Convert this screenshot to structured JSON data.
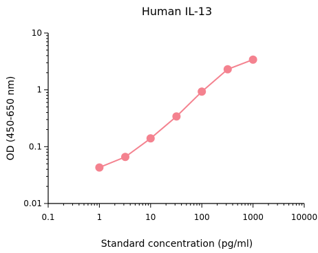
{
  "chart_data": {
    "type": "line",
    "title": "Human IL-13",
    "xlabel": "Standard concentration (pg/ml)",
    "ylabel": "OD (450-650 nm)",
    "xscale": "log",
    "yscale": "log",
    "xlim": [
      0.1,
      10000
    ],
    "ylim": [
      0.01,
      10
    ],
    "xticks": [
      {
        "value": 0.1,
        "label": "0.1"
      },
      {
        "value": 1,
        "label": "1"
      },
      {
        "value": 10,
        "label": "10"
      },
      {
        "value": 100,
        "label": "100"
      },
      {
        "value": 1000,
        "label": "1000"
      },
      {
        "value": 10000,
        "label": "10000"
      }
    ],
    "yticks": [
      {
        "value": 0.01,
        "label": "0.01"
      },
      {
        "value": 0.1,
        "label": "0.1"
      },
      {
        "value": 1,
        "label": "1"
      },
      {
        "value": 10,
        "label": "10"
      }
    ],
    "grid": false,
    "color": "#f4828f",
    "series": [
      {
        "x": [
          1,
          3.2,
          10,
          32,
          100,
          320,
          1000
        ],
        "y": [
          0.043,
          0.066,
          0.14,
          0.34,
          0.93,
          2.3,
          3.4
        ]
      }
    ]
  }
}
